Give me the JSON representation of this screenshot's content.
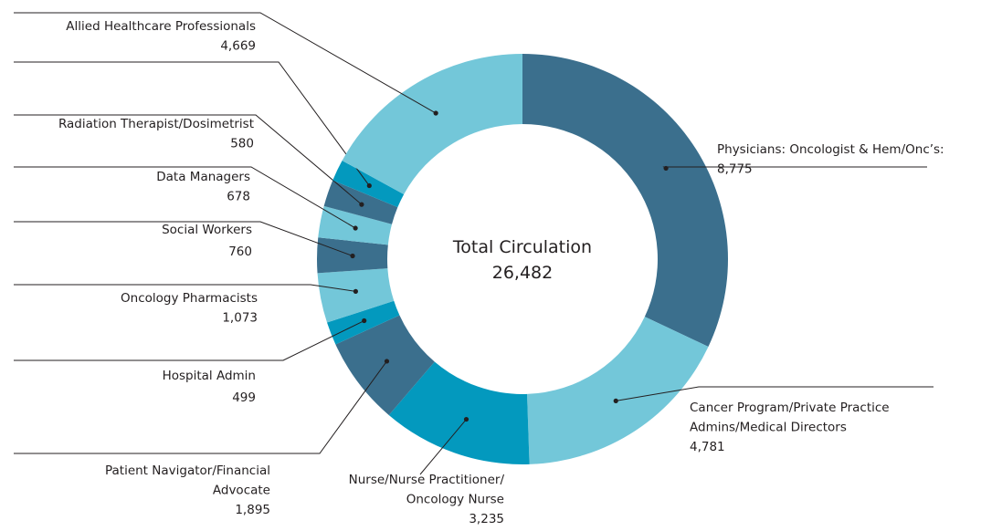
{
  "chart_data": {
    "type": "donut",
    "center_label": "Total Circulation",
    "center_value": {
      "value": 26482,
      "label": "26,482"
    },
    "categories": [
      "Physicians: Oncologist & Hem/Onc’s:",
      "Cancer Program/Private Practice\nAdmins/Medical Directors",
      "Nurse/Nurse Practitioner/\nOncology Nurse",
      "Patient Navigator/Financial\nAdvocate",
      "Hospital Admin",
      "Oncology Pharmacists",
      "Social Workers",
      "Data Managers",
      "Radiation Therapist/Dosimetrist",
      null,
      "Allied Healthcare Professionals"
    ],
    "values": [
      8775,
      4781,
      3235,
      1895,
      499,
      1073,
      760,
      678,
      580,
      463,
      4669
    ],
    "value_labels": [
      "8,775",
      "4,781",
      "3,235",
      "1,895",
      "499",
      "1,073",
      "760",
      "678",
      "580",
      null,
      "4,669"
    ],
    "colors": [
      "#3b6f8d",
      "#73c7d9",
      "#0399be",
      "#3b6f8d",
      "#0399be",
      "#73c7d9",
      "#3b6f8d",
      "#73c7d9",
      "#3b6f8d",
      "#0399be",
      "#73c7d9"
    ]
  }
}
